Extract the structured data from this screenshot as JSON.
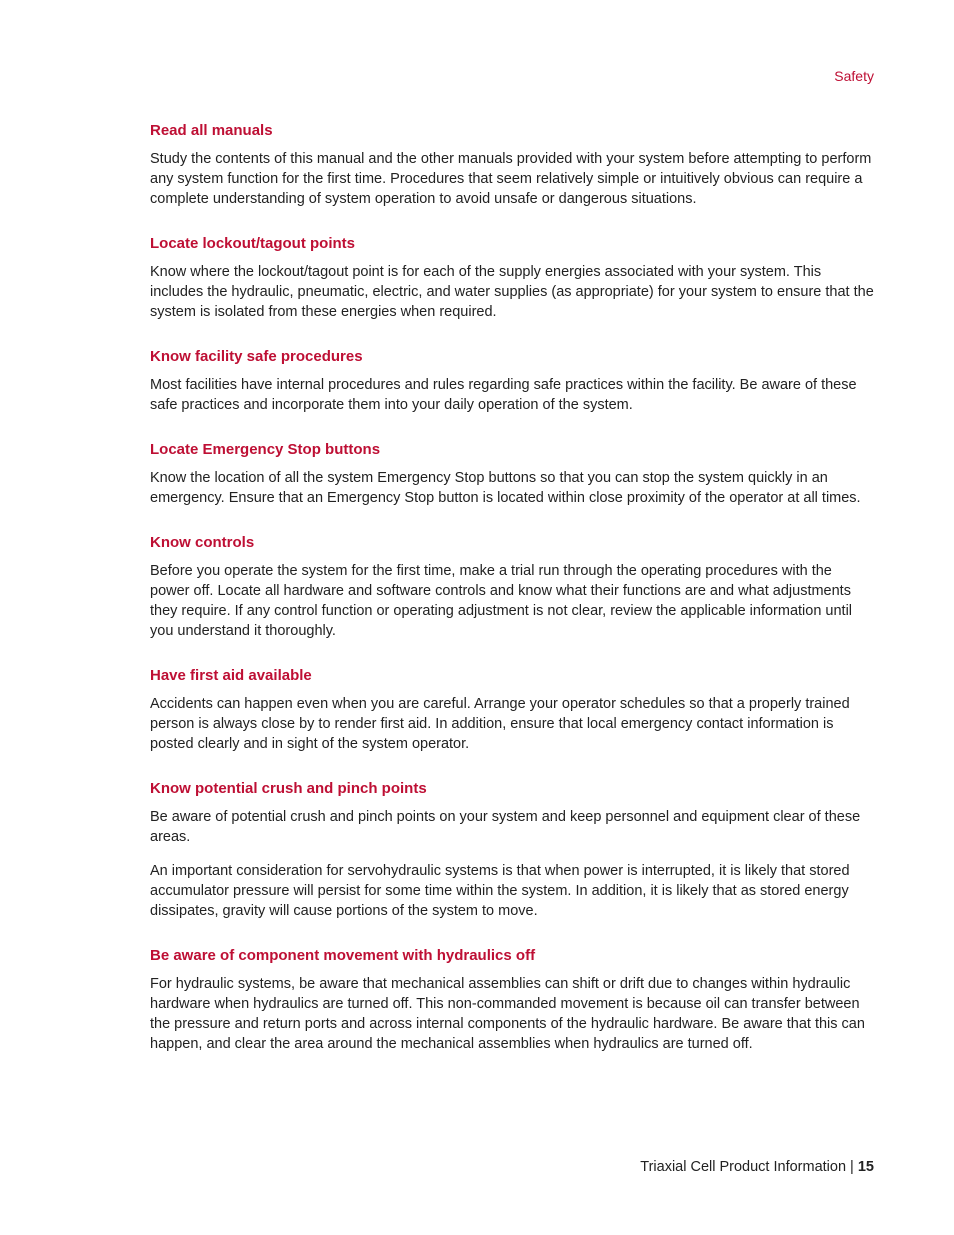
{
  "header": {
    "label": "Safety"
  },
  "sections": [
    {
      "heading": "Read all manuals",
      "paragraphs": [
        "Study the contents of this manual and the other manuals provided with your system before attempting to perform any system function for the first time. Procedures that seem relatively simple or intuitively obvious can require a complete understanding of system operation to avoid unsafe or dangerous situations."
      ]
    },
    {
      "heading": "Locate lockout/tagout points",
      "paragraphs": [
        "Know where the lockout/tagout point is for each of the supply energies associated with your system. This includes the hydraulic, pneumatic, electric, and water supplies (as appropriate) for your system to ensure that the system is isolated from these energies when required."
      ]
    },
    {
      "heading": "Know facility safe procedures",
      "paragraphs": [
        "Most facilities have internal procedures and rules regarding safe practices within the facility. Be aware of these safe practices and incorporate them into your daily operation of the system."
      ]
    },
    {
      "heading": "Locate Emergency Stop buttons",
      "paragraphs": [
        "Know the location of all the system Emergency Stop buttons so that you can stop the system quickly in an emergency. Ensure that an Emergency Stop button is located within close proximity of the operator at all times."
      ]
    },
    {
      "heading": "Know controls",
      "paragraphs": [
        "Before you operate the system for the first time, make a trial run through the operating procedures with the power off. Locate all hardware and software controls and know what their functions are and what adjustments they require. If any control function or operating adjustment is not clear, review the applicable information until you understand it thoroughly."
      ]
    },
    {
      "heading": "Have first aid available",
      "paragraphs": [
        "Accidents can happen even when you are careful. Arrange your operator schedules so that a properly trained person is always close by to render first aid. In addition, ensure that local emergency contact information is posted clearly and in sight of the system operator."
      ]
    },
    {
      "heading": "Know potential crush and pinch points",
      "paragraphs": [
        "Be aware of potential crush and pinch points on your system and keep personnel and equipment clear of these areas.",
        "An important consideration for servohydraulic systems is that when power is interrupted, it is likely that stored accumulator pressure will persist for some time within the system. In addition, it is likely that as stored energy dissipates, gravity will cause portions of the system to move."
      ]
    },
    {
      "heading": "Be aware of component movement with hydraulics off",
      "paragraphs": [
        "For hydraulic systems, be aware that mechanical assemblies can shift or drift due to changes within hydraulic hardware when hydraulics are turned off. This non-commanded movement is because oil can transfer between the pressure and return ports and across internal components of the hydraulic hardware. Be aware that this can happen, and clear the area around the mechanical assemblies when hydraulics are turned off."
      ]
    }
  ],
  "footer": {
    "title": "Triaxial Cell Product Information",
    "separator": " | ",
    "page": "15"
  },
  "colors": {
    "accent": "#be0f34",
    "text": "#222222",
    "background": "#ffffff"
  }
}
